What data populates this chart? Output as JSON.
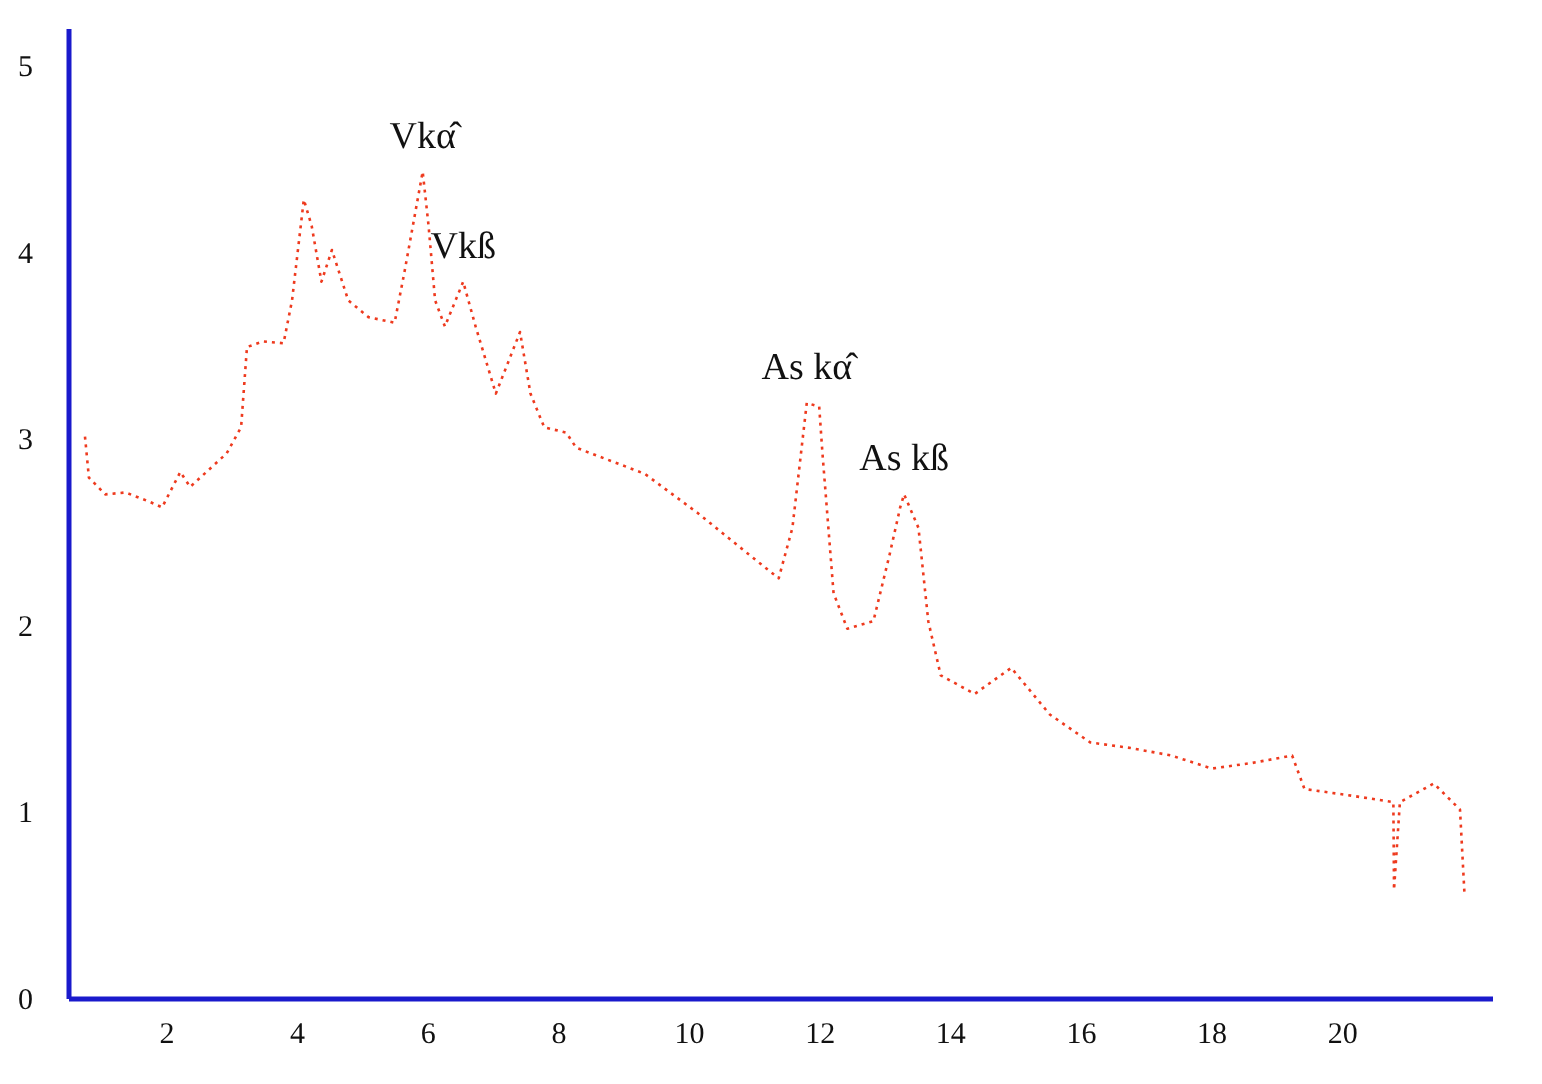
{
  "chart_data": {
    "type": "line",
    "xlim": [
      0.5,
      22.3
    ],
    "ylim": [
      0,
      5.2
    ],
    "xticks": [
      2,
      4,
      6,
      8,
      10,
      12,
      14,
      16,
      18,
      20
    ],
    "yticks": [
      0,
      1,
      2,
      3,
      4,
      5
    ],
    "grid": false,
    "line_style": "dotted",
    "marker": "none",
    "x": [
      0.76,
      0.82,
      1.07,
      1.38,
      1.75,
      1.94,
      2.22,
      2.37,
      2.93,
      3.15,
      3.24,
      3.49,
      3.8,
      3.93,
      4.11,
      4.23,
      4.38,
      4.54,
      4.79,
      5.1,
      5.5,
      5.65,
      5.93,
      6.02,
      6.12,
      6.27,
      6.55,
      6.74,
      7.05,
      7.42,
      7.58,
      7.79,
      8.13,
      8.28,
      9.33,
      10.14,
      10.88,
      11.38,
      11.59,
      11.81,
      12.0,
      12.05,
      12.22,
      12.43,
      12.83,
      13.08,
      13.24,
      13.3,
      13.52,
      13.67,
      13.86,
      14.38,
      14.94,
      15.53,
      16.15,
      16.77,
      17.39,
      18.01,
      18.63,
      19.24,
      19.43,
      20.05,
      20.79,
      20.8,
      20.89,
      21.41,
      21.81,
      21.88
    ],
    "series": [
      {
        "color": "#ee3a1e",
        "values": [
          3.01,
          2.79,
          2.7,
          2.71,
          2.66,
          2.63,
          2.82,
          2.74,
          2.92,
          3.06,
          3.49,
          3.52,
          3.51,
          3.74,
          4.28,
          4.14,
          3.84,
          4.01,
          3.74,
          3.65,
          3.62,
          3.89,
          4.43,
          4.14,
          3.74,
          3.6,
          3.84,
          3.6,
          3.24,
          3.57,
          3.24,
          3.06,
          3.03,
          2.95,
          2.81,
          2.6,
          2.39,
          2.25,
          2.52,
          3.19,
          3.17,
          2.92,
          2.17,
          1.98,
          2.02,
          2.38,
          2.63,
          2.7,
          2.52,
          2.02,
          1.73,
          1.63,
          1.77,
          1.52,
          1.37,
          1.34,
          1.3,
          1.23,
          1.26,
          1.3,
          1.12,
          1.09,
          1.05,
          0.58,
          1.05,
          1.15,
          1.01,
          0.55
        ]
      }
    ],
    "annotations": [
      {
        "text": "Vkα̂",
        "x": 5.93,
        "y": 4.43
      },
      {
        "text": "Vkß",
        "x": 6.55,
        "y": 3.84
      },
      {
        "text": "As kα̂",
        "x": 11.81,
        "y": 3.19
      },
      {
        "text": "As kß",
        "x": 13.3,
        "y": 2.7
      }
    ]
  }
}
